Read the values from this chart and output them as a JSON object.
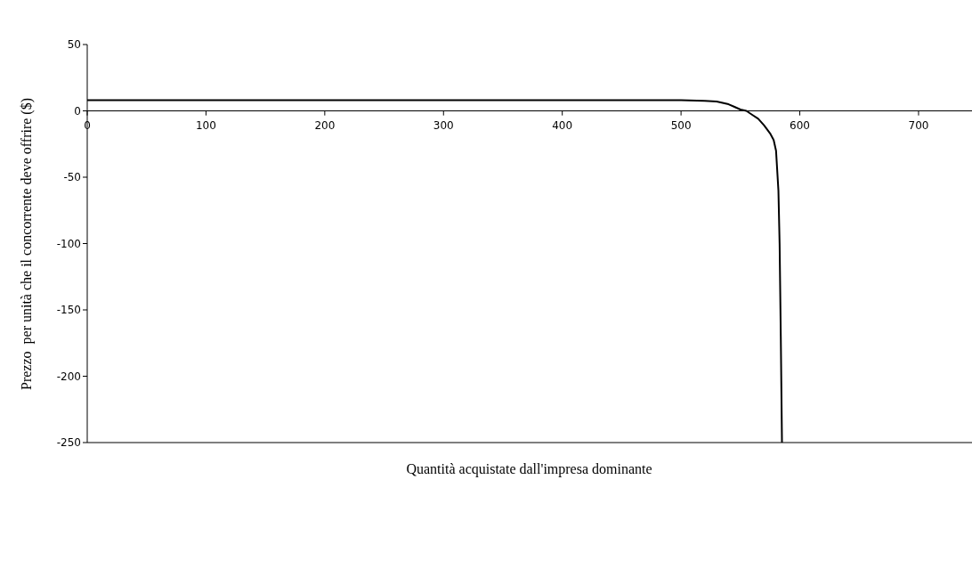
{
  "chart_data": {
    "type": "line",
    "xlabel": "Quantità acquistate dall'impresa dominante",
    "ylabel": "Prezzo  per unità che il concorrente deve offrire ($)",
    "x": [
      0,
      100,
      200,
      300,
      400,
      500,
      520,
      530,
      540,
      545,
      550,
      555,
      560,
      565,
      570,
      575,
      578,
      580,
      582,
      583,
      584,
      585
    ],
    "values": [
      8,
      8,
      8,
      8,
      8,
      8,
      7.5,
      7,
      5,
      3,
      1,
      0,
      -3,
      -6,
      -11,
      -17,
      -22,
      -30,
      -60,
      -100,
      -170,
      -250
    ],
    "color": "#000000",
    "xlim": [
      0,
      745
    ],
    "xticks": [
      0,
      100,
      200,
      300,
      400,
      500,
      600,
      700
    ],
    "ylim": [
      -250,
      50
    ],
    "yticks": [
      -250,
      -200,
      -150,
      -100,
      -50,
      0,
      50
    ],
    "marker": "none",
    "line_style": "solid"
  }
}
